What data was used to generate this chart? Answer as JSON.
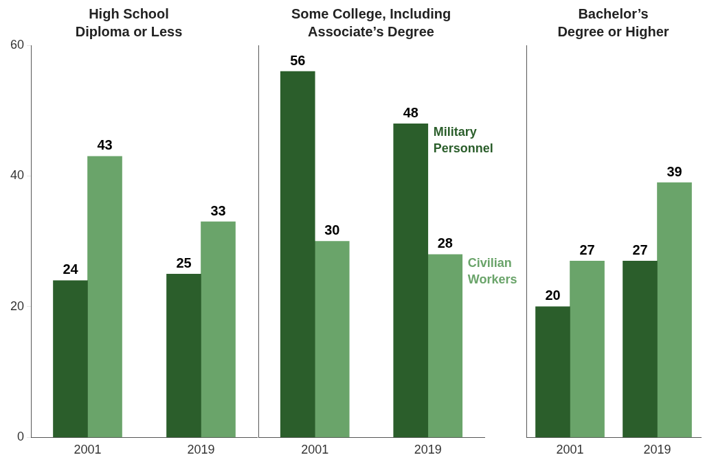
{
  "chart_data": [
    {
      "type": "bar",
      "title": "High School Diploma or Less",
      "categories": [
        "2001",
        "2019"
      ],
      "series": [
        {
          "color": "#2b5e2b",
          "values": [
            24,
            25
          ]
        },
        {
          "color": "#6aa46a",
          "values": [
            43,
            33
          ]
        }
      ],
      "ylim": [
        0,
        60
      ],
      "yticks": [
        0,
        20,
        40,
        60
      ],
      "data_labels": true,
      "grid": false,
      "legend": false
    },
    {
      "type": "bar",
      "title": "Some College, Including Associate’s Degree",
      "categories": [
        "2001",
        "2019"
      ],
      "series": [
        {
          "name": "Military Personnel",
          "color": "#2b5e2b",
          "values": [
            56,
            48
          ]
        },
        {
          "name": "Civilian Workers",
          "color": "#6aa46a",
          "values": [
            30,
            28
          ]
        }
      ],
      "ylim": [
        0,
        60
      ],
      "yticks": [
        0,
        20,
        40,
        60
      ],
      "data_labels": true,
      "grid": false,
      "legend": false,
      "tick_labels": "x"
    },
    {
      "type": "bar",
      "title": "Bachelor’s Degree or Higher",
      "categories": [
        "2001",
        "2019"
      ],
      "series": [
        {
          "color": "#2b5e2b",
          "values": [
            20,
            27
          ]
        },
        {
          "color": "#6aa46a",
          "values": [
            27,
            39
          ]
        }
      ],
      "ylim": [
        0,
        60
      ],
      "yticks": [
        0,
        20,
        40,
        60
      ],
      "data_labels": true,
      "grid": false,
      "legend": false,
      "tick_labels": "x"
    }
  ]
}
